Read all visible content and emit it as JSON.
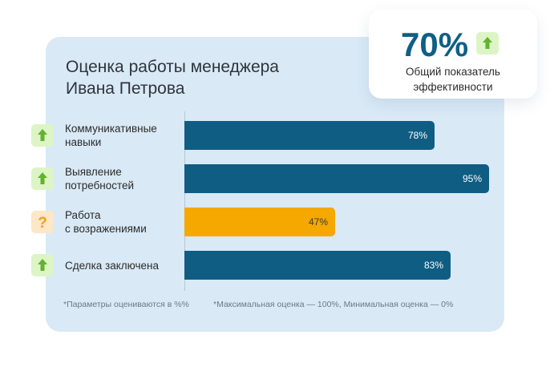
{
  "title_lines": [
    "Оценка работы менеджера",
    "Ивана Петрова"
  ],
  "kpi": {
    "value": "70%",
    "label_lines": [
      "Общий показатель",
      "эффективности"
    ],
    "icon": "arrow-up-icon"
  },
  "colors": {
    "card_background": "#d9e9f6",
    "bar_primary": "#0f5d82",
    "bar_warning": "#f4a800",
    "kpi_value": "#0f5f86",
    "icon_up_bg": "#ddf5c6",
    "icon_up_arrow": "#62b32d",
    "icon_question_bg": "#fde7c6",
    "icon_question_mark": "#f0a020"
  },
  "chart_data": {
    "type": "bar",
    "orientation": "horizontal",
    "xlim": [
      0,
      100
    ],
    "categories": [
      {
        "lines": [
          "Коммуникативные",
          "навыки"
        ],
        "value": 78,
        "label": "78%",
        "status": "up",
        "icon": "arrow-up-icon"
      },
      {
        "lines": [
          "Выявление",
          "потребностей"
        ],
        "value": 95,
        "label": "95%",
        "status": "up",
        "icon": "arrow-up-icon"
      },
      {
        "lines": [
          "Работа",
          "с возражениями"
        ],
        "value": 47,
        "label": "47%",
        "status": "warning",
        "icon": "question-icon"
      },
      {
        "lines": [
          "Сделка заключена"
        ],
        "value": 83,
        "label": "83%",
        "status": "up",
        "icon": "arrow-up-icon"
      }
    ]
  },
  "footnotes": [
    "*Параметры оцениваются в %%",
    "*Максимальная оценка — 100%, Минимальная оценка — 0%"
  ]
}
